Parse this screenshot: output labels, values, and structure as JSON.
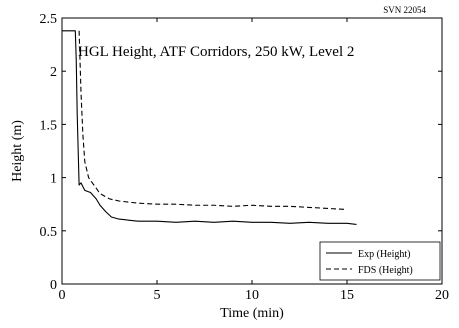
{
  "chart_data": {
    "type": "line",
    "title": "HGL Height, ATF Corridors, 250 kW, Level 2",
    "corner_label": "SVN 22054",
    "xlabel": "Time (min)",
    "ylabel": "Height (m)",
    "xlim": [
      0,
      20
    ],
    "ylim": [
      0,
      2.5
    ],
    "xticks": [
      0,
      5,
      10,
      15,
      20
    ],
    "yticks": [
      0,
      0.5,
      1,
      1.5,
      2,
      2.5
    ],
    "xtick_labels": [
      "0",
      "5",
      "10",
      "15",
      "20"
    ],
    "ytick_labels": [
      "0",
      "0.5",
      "1",
      "1.5",
      "2",
      "2.5"
    ],
    "grid": false,
    "legend_position": "bottom-right",
    "series": [
      {
        "name": "Exp (Height)",
        "style": "solid",
        "color": "#000000",
        "x": [
          0,
          0.7,
          0.75,
          0.8,
          0.9,
          1.0,
          1.2,
          1.5,
          1.8,
          2.0,
          2.3,
          2.6,
          3.0,
          3.5,
          4.0,
          5.0,
          6.0,
          7.0,
          8.0,
          9.0,
          10.0,
          11.0,
          12.0,
          13.0,
          14.0,
          15.0,
          15.5
        ],
        "y": [
          2.38,
          2.38,
          2.1,
          1.6,
          0.93,
          0.95,
          0.88,
          0.86,
          0.8,
          0.74,
          0.68,
          0.63,
          0.61,
          0.6,
          0.59,
          0.59,
          0.58,
          0.59,
          0.58,
          0.59,
          0.58,
          0.58,
          0.57,
          0.58,
          0.57,
          0.57,
          0.56
        ]
      },
      {
        "name": "FDS (Height)",
        "style": "dashed",
        "color": "#000000",
        "x": [
          0.9,
          1.0,
          1.1,
          1.2,
          1.4,
          1.6,
          1.8,
          2.0,
          2.5,
          3.0,
          3.5,
          4.0,
          5.0,
          6.0,
          7.0,
          8.0,
          9.0,
          10.0,
          11.0,
          12.0,
          13.0,
          14.0,
          15.0
        ],
        "y": [
          2.38,
          1.8,
          1.4,
          1.15,
          1.0,
          0.95,
          0.9,
          0.85,
          0.8,
          0.78,
          0.77,
          0.76,
          0.75,
          0.75,
          0.74,
          0.74,
          0.73,
          0.74,
          0.73,
          0.73,
          0.72,
          0.71,
          0.7
        ]
      }
    ]
  }
}
